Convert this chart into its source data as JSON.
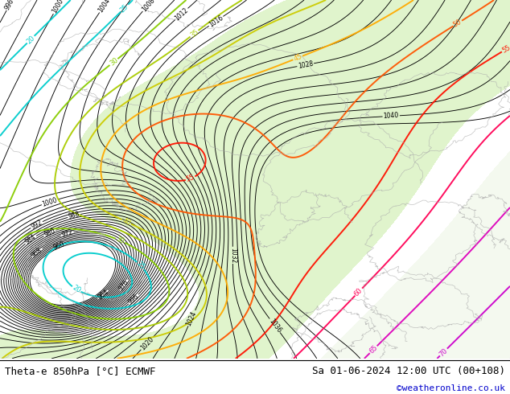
{
  "title_left": "Theta-e 850hPa [°C] ECMWF",
  "title_right": "Sa 01-06-2024 12:00 UTC (00+108)",
  "credit": "©weatheronline.co.uk",
  "credit_color": "#0000cc",
  "bg_color": "#ffffff",
  "map_bg": "#f0f0f0",
  "border_color": "#000000",
  "fig_width": 6.34,
  "fig_height": 4.9,
  "dpi": 100,
  "label_fontsize": 9,
  "credit_fontsize": 8,
  "theta_colors": {
    "20": "#00cccc",
    "25": "#00cccc",
    "30": "#66cc00",
    "35": "#99cc00",
    "40": "#cccc00",
    "45": "#ffaa00",
    "50": "#ff6600",
    "55": "#ff2200",
    "60": "#ff0066",
    "65": "#cc00aa",
    "70": "#cc00cc",
    "75": "#aa00dd"
  }
}
